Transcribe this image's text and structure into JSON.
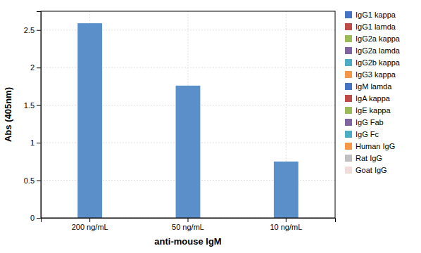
{
  "chart_data": {
    "type": "bar",
    "categories": [
      "200 ng/mL",
      "50 ng/mL",
      "10 ng/mL"
    ],
    "values": [
      2.59,
      1.76,
      0.75
    ],
    "color": "#5B8FC9",
    "xlabel": "anti-mouse IgM",
    "ylabel": "Abs (405nm)",
    "ylim": [
      0,
      2.75
    ],
    "yticks": [
      0,
      0.5,
      1,
      1.5,
      2,
      2.5
    ],
    "grid": true,
    "legend": "right",
    "legend_entries": [
      {
        "label": "IgG1 kappa",
        "color": "#4472C4"
      },
      {
        "label": "IgG1 lamda",
        "color": "#BE4B48"
      },
      {
        "label": "IgG2a kappa",
        "color": "#9BBB59"
      },
      {
        "label": "IgG2a lamda",
        "color": "#8064A2"
      },
      {
        "label": "IgG2b kappa",
        "color": "#4BACC6"
      },
      {
        "label": "IgG3 kappa",
        "color": "#F79646"
      },
      {
        "label": "IgM lamda",
        "color": "#4472C4"
      },
      {
        "label": "IgA kappa",
        "color": "#BE4B48"
      },
      {
        "label": "IgE kappa",
        "color": "#9BBB59"
      },
      {
        "label": "IgG Fab",
        "color": "#8064A2"
      },
      {
        "label": "IgG Fc",
        "color": "#4BACC6"
      },
      {
        "label": "Human IgG",
        "color": "#F79646"
      },
      {
        "label": "Rat IgG",
        "color": "#C0C0C0"
      },
      {
        "label": "Goat IgG",
        "color": "#F2DCDB"
      }
    ]
  }
}
